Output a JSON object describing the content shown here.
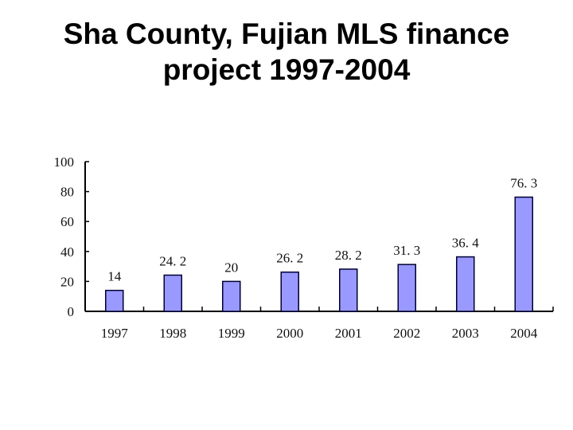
{
  "title": {
    "line1": "Sha County, Fujian MLS finance",
    "line2": "project 1997-2004"
  },
  "chart_data": {
    "type": "bar",
    "title": "Sha County, Fujian MLS finance project 1997-2004",
    "xlabel": "",
    "ylabel": "",
    "categories": [
      "1997",
      "1998",
      "1999",
      "2000",
      "2001",
      "2002",
      "2003",
      "2004"
    ],
    "values": [
      14,
      24.2,
      20,
      26.2,
      28.2,
      31.3,
      36.4,
      76.3
    ],
    "value_labels": [
      "14",
      "24. 2",
      "20",
      "26. 2",
      "28. 2",
      "31. 3",
      "36. 4",
      "76. 3"
    ],
    "ylim": [
      0,
      100
    ],
    "yticks": [
      0,
      20,
      40,
      60,
      80,
      100
    ],
    "grid": false,
    "legend": null,
    "bar_color": "#9999ff",
    "bar_edge_color": "#000033"
  }
}
